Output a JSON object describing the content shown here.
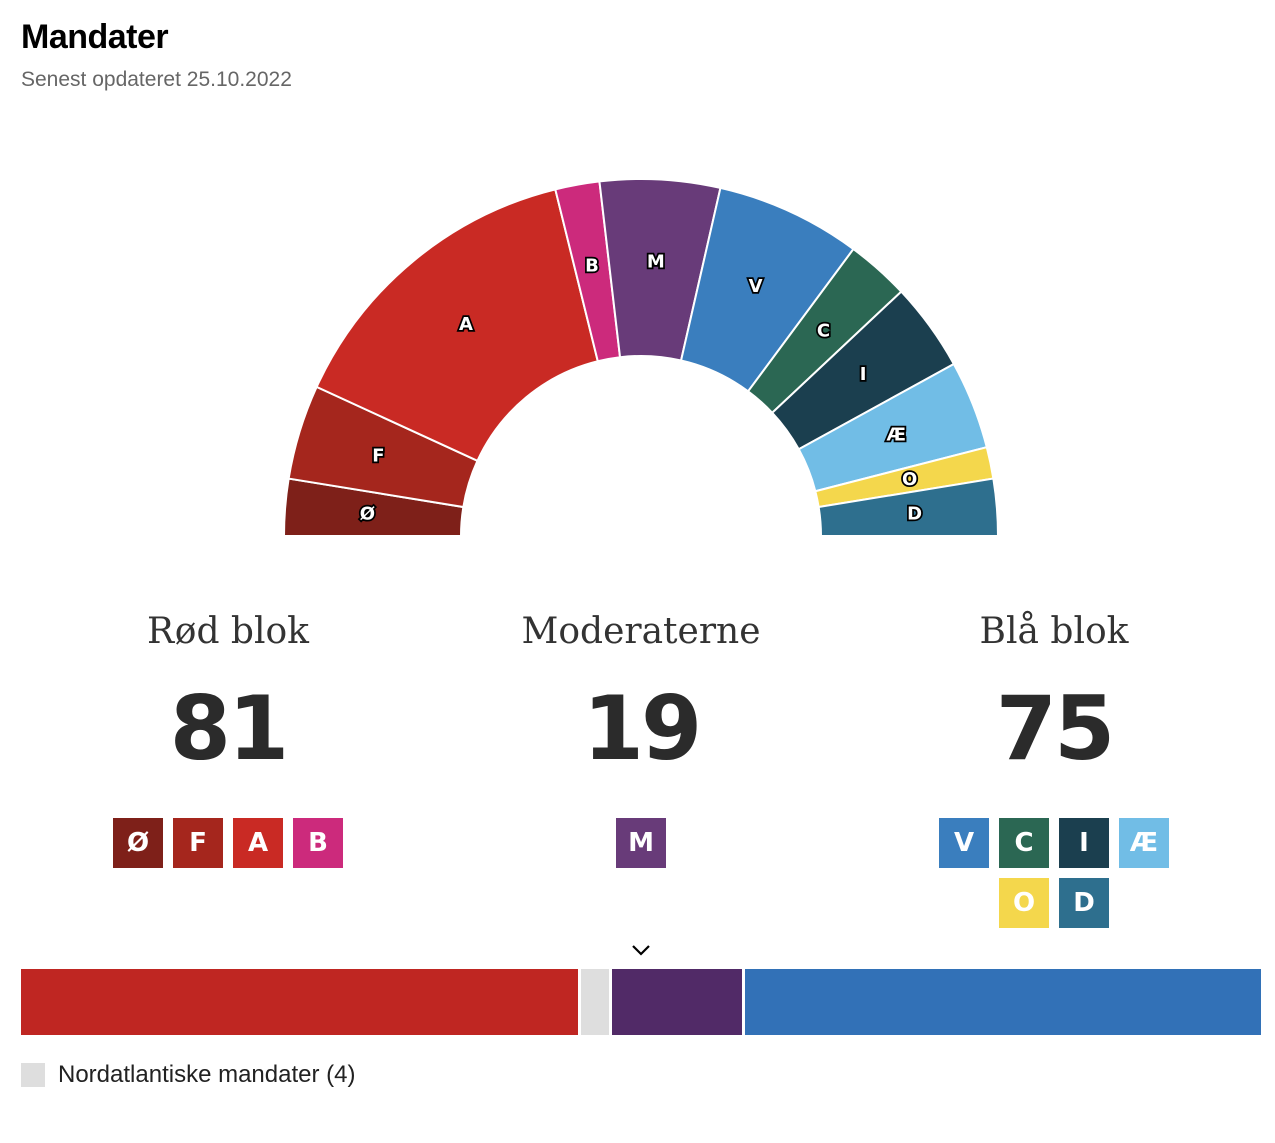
{
  "header": {
    "title": "Mandater",
    "subtitle": "Senest opdateret 25.10.2022"
  },
  "chart_data": [
    {
      "type": "hemicycle",
      "title": "Mandater",
      "total_seats": 175,
      "series": [
        {
          "name": "Ø",
          "value": 9,
          "color": "#7e2019"
        },
        {
          "name": "F",
          "value": 15,
          "color": "#a5261d"
        },
        {
          "name": "A",
          "value": 50,
          "color": "#c92a24"
        },
        {
          "name": "B",
          "value": 7,
          "color": "#cc2a7c"
        },
        {
          "name": "M",
          "value": 19,
          "color": "#683b79"
        },
        {
          "name": "V",
          "value": 23,
          "color": "#3a7ebe"
        },
        {
          "name": "C",
          "value": 10,
          "color": "#2b6753"
        },
        {
          "name": "I",
          "value": 14,
          "color": "#1b3f4f"
        },
        {
          "name": "Æ",
          "value": 14,
          "color": "#71bde6"
        },
        {
          "name": "O",
          "value": 5,
          "color": "#f4d74c"
        },
        {
          "name": "D",
          "value": 9,
          "color": "#2e6f8e"
        }
      ]
    },
    {
      "type": "stacked-bar",
      "total_seats": 179,
      "series": [
        {
          "name": "Rød blok",
          "value": 81,
          "color": "#bf2622"
        },
        {
          "name": "Nordatlantiske mandater",
          "value": 4,
          "color": "#dedede"
        },
        {
          "name": "Moderaterne",
          "value": 19,
          "color": "#512a67"
        },
        {
          "name": "Blå blok",
          "value": 75,
          "color": "#3271b7"
        }
      ]
    }
  ],
  "blocs": [
    {
      "name": "Rød blok",
      "seats": "81",
      "parties": [
        {
          "letter": "Ø",
          "color": "#7e2019"
        },
        {
          "letter": "F",
          "color": "#a5261d"
        },
        {
          "letter": "A",
          "color": "#c92a24"
        },
        {
          "letter": "B",
          "color": "#cc2a7c"
        }
      ]
    },
    {
      "name": "Moderaterne",
      "seats": "19",
      "parties": [
        {
          "letter": "M",
          "color": "#683b79"
        }
      ]
    },
    {
      "name": "Blå blok",
      "seats": "75",
      "parties": [
        {
          "letter": "V",
          "color": "#3a7ebe"
        },
        {
          "letter": "C",
          "color": "#2b6753"
        },
        {
          "letter": "I",
          "color": "#1b3f4f"
        },
        {
          "letter": "Æ",
          "color": "#71bde6"
        },
        {
          "letter": "O",
          "color": "#f4d74c"
        },
        {
          "letter": "D",
          "color": "#2e6f8e"
        }
      ]
    }
  ],
  "majority_marker_icon": "chevron-down-icon",
  "legend": {
    "label": "Nordatlantiske mandater (4)",
    "color": "#dedede"
  }
}
